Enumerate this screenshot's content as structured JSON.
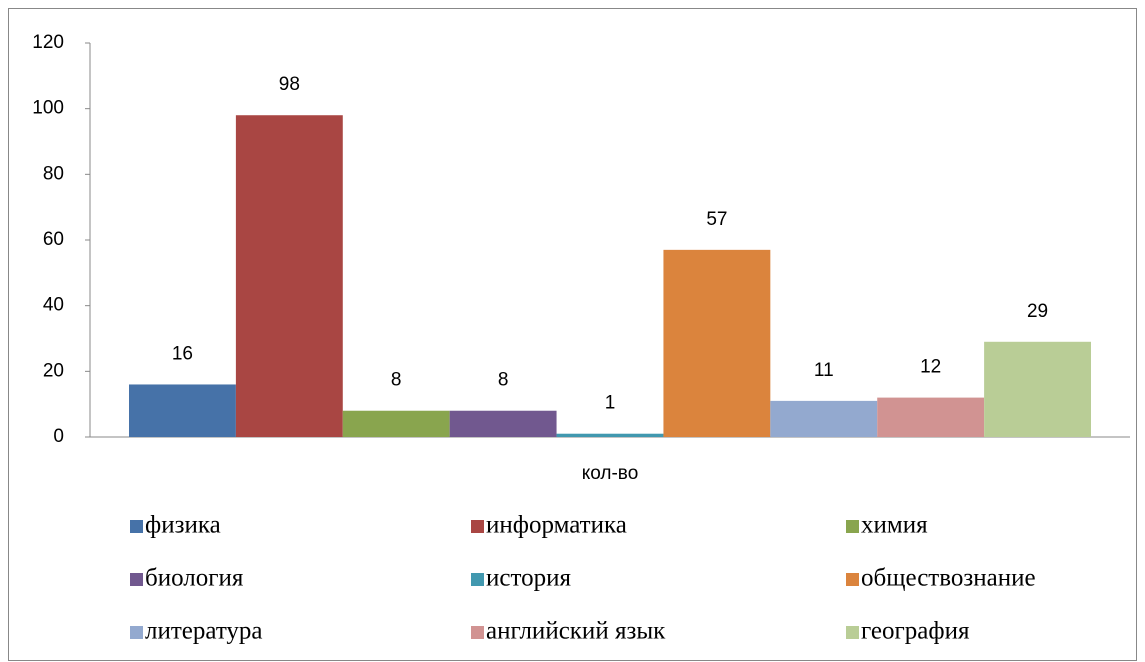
{
  "chart_data": {
    "type": "bar",
    "categories": [
      "кол-во"
    ],
    "series": [
      {
        "name": "физика",
        "color": "#4672a8",
        "values": [
          16
        ]
      },
      {
        "name": "информатика",
        "color": "#a94643",
        "values": [
          98
        ]
      },
      {
        "name": "химия",
        "color": "#89a54e",
        "values": [
          8
        ]
      },
      {
        "name": "биология",
        "color": "#71588f",
        "values": [
          8
        ]
      },
      {
        "name": "история",
        "color": "#4198af",
        "values": [
          1
        ]
      },
      {
        "name": "обществознание",
        "color": "#db843d",
        "values": [
          57
        ]
      },
      {
        "name": "литература",
        "color": "#93a9cf",
        "values": [
          11
        ]
      },
      {
        "name": "английский язык",
        "color": "#d19392",
        "values": [
          12
        ]
      },
      {
        "name": "география",
        "color": "#b9cd96",
        "values": [
          29
        ]
      }
    ],
    "ylim": [
      0,
      120
    ],
    "yticks": [
      0,
      20,
      40,
      60,
      80,
      100,
      120
    ],
    "grid": false,
    "legend": "bottom",
    "data_labels": true
  }
}
